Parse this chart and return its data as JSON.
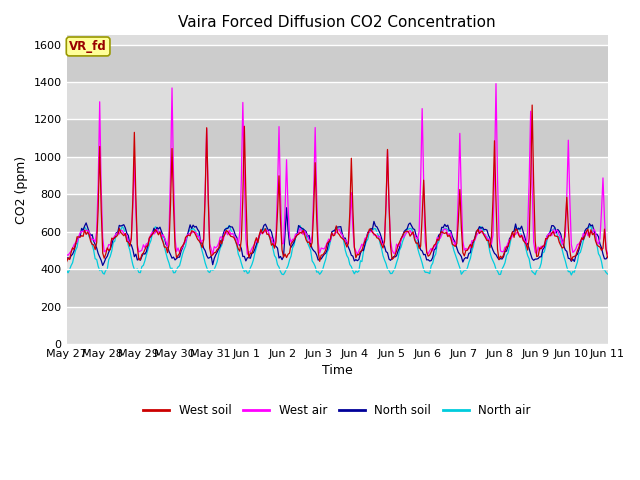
{
  "title": "Vaira Forced Diffusion CO2 Concentration",
  "xlabel": "Time",
  "ylabel": "CO2 (ppm)",
  "ylim": [
    0,
    1650
  ],
  "yticks": [
    0,
    200,
    400,
    600,
    800,
    1000,
    1200,
    1400,
    1600
  ],
  "legend_labels": [
    "West soil",
    "West air",
    "North soil",
    "North air"
  ],
  "legend_colors": [
    "#cc0000",
    "#ff00ff",
    "#000099",
    "#00ccdd"
  ],
  "annotation_text": "VR_fd",
  "annotation_color": "#990000",
  "annotation_bg": "#ffff99",
  "annotation_border": "#999900",
  "background_color": "#dddddd",
  "band_colors": [
    "#dddddd",
    "#cccccc"
  ],
  "tick_labels": [
    "May 27",
    "May 28",
    "May 29",
    "May 30",
    "May 31",
    "Jun 1",
    "Jun 2",
    "Jun 3",
    "Jun 4",
    "Jun 5",
    "Jun 6",
    "Jun 7",
    "Jun 8",
    "Jun 9",
    "Jun 10",
    "Jun 11"
  ],
  "num_days": 15,
  "ppd": 24,
  "seed": 7
}
